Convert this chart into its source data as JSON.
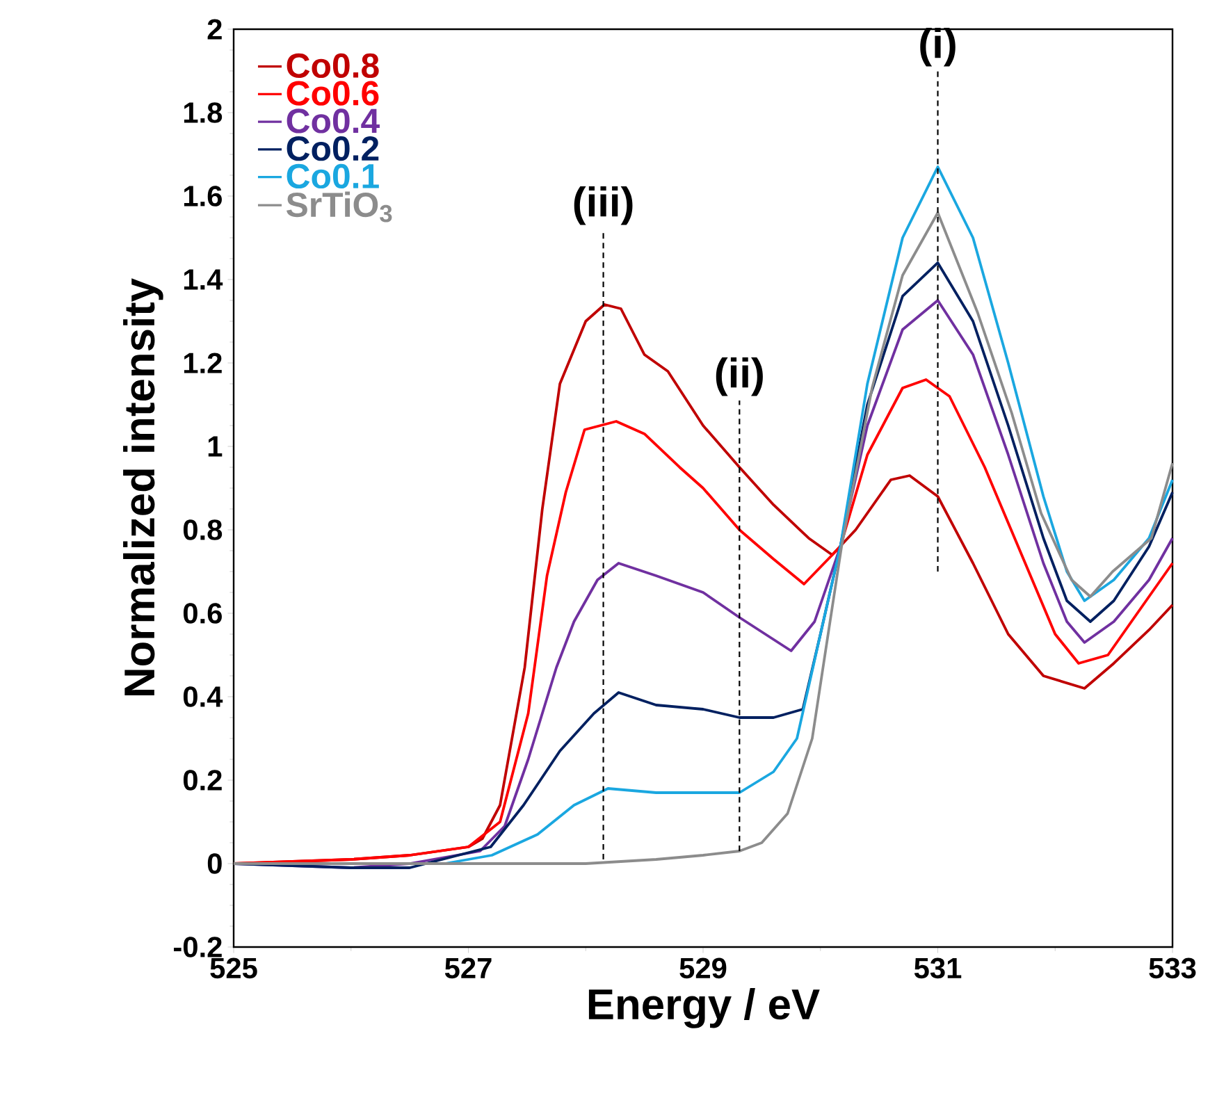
{
  "chart_data": {
    "type": "line",
    "xlabel": "Energy / eV",
    "ylabel": "Normalized intensity",
    "xlim": [
      525,
      533
    ],
    "xticks": [
      525,
      527,
      529,
      531,
      533
    ],
    "ylim": [
      -0.2,
      2
    ],
    "yticks": [
      -0.2,
      0,
      0.2,
      0.4,
      0.6,
      0.8,
      1,
      1.2,
      1.4,
      1.6,
      1.8,
      2
    ],
    "grid": false,
    "legend": "top left",
    "marker": "none",
    "series": [
      {
        "name": "Co0.8",
        "color": "#c00000",
        "x": [
          525,
          526,
          526.5,
          527,
          527.12,
          527.27,
          527.48,
          527.63,
          527.78,
          528.0,
          528.16,
          528.3,
          528.5,
          528.7,
          529.0,
          529.31,
          529.6,
          529.9,
          530.1,
          530.3,
          530.6,
          530.76,
          531.0,
          531.3,
          531.6,
          531.9,
          532.25,
          532.5,
          532.8,
          533
        ],
        "values": [
          0,
          0.01,
          0.02,
          0.04,
          0.06,
          0.14,
          0.47,
          0.85,
          1.15,
          1.3,
          1.34,
          1.33,
          1.22,
          1.18,
          1.05,
          0.95,
          0.86,
          0.78,
          0.74,
          0.8,
          0.92,
          0.93,
          0.88,
          0.72,
          0.55,
          0.45,
          0.42,
          0.48,
          0.56,
          0.62
        ]
      },
      {
        "name": "Co0.6",
        "color": "#ff0000",
        "x": [
          525,
          526,
          526.5,
          527,
          527.27,
          527.51,
          527.67,
          527.83,
          527.99,
          528.26,
          528.5,
          528.8,
          529.0,
          529.31,
          529.6,
          529.86,
          530.17,
          530.4,
          530.7,
          530.9,
          531.1,
          531.4,
          531.7,
          532.0,
          532.2,
          532.45,
          532.7,
          533
        ],
        "values": [
          0,
          0.01,
          0.02,
          0.04,
          0.1,
          0.36,
          0.69,
          0.89,
          1.04,
          1.06,
          1.03,
          0.95,
          0.9,
          0.8,
          0.73,
          0.67,
          0.76,
          0.98,
          1.14,
          1.16,
          1.12,
          0.95,
          0.75,
          0.55,
          0.48,
          0.5,
          0.6,
          0.72
        ]
      },
      {
        "name": "Co0.4",
        "color": "#7030a0",
        "x": [
          525,
          526,
          526.5,
          527.1,
          527.31,
          527.51,
          527.75,
          527.9,
          528.1,
          528.28,
          528.6,
          529.0,
          529.31,
          529.75,
          529.95,
          530.17,
          530.4,
          530.7,
          531.0,
          531.3,
          531.6,
          531.9,
          532.1,
          532.25,
          532.5,
          532.8,
          533
        ],
        "values": [
          0,
          -0.01,
          0,
          0.03,
          0.09,
          0.25,
          0.47,
          0.58,
          0.68,
          0.72,
          0.69,
          0.65,
          0.59,
          0.51,
          0.58,
          0.76,
          1.05,
          1.28,
          1.35,
          1.22,
          0.98,
          0.72,
          0.58,
          0.53,
          0.58,
          0.68,
          0.78
        ]
      },
      {
        "name": "Co0.2",
        "color": "#002060",
        "x": [
          525,
          526,
          526.5,
          527.19,
          527.47,
          527.78,
          528.07,
          528.28,
          528.6,
          529.0,
          529.31,
          529.6,
          529.85,
          530.0,
          530.17,
          530.4,
          530.7,
          531.0,
          531.3,
          531.6,
          531.9,
          532.1,
          532.3,
          532.5,
          532.8,
          533
        ],
        "values": [
          0,
          -0.01,
          -0.01,
          0.04,
          0.14,
          0.27,
          0.36,
          0.41,
          0.38,
          0.37,
          0.35,
          0.35,
          0.37,
          0.55,
          0.76,
          1.1,
          1.36,
          1.44,
          1.3,
          1.05,
          0.78,
          0.63,
          0.58,
          0.63,
          0.76,
          0.89
        ]
      },
      {
        "name": "Co0.1",
        "color": "#1aa7e0",
        "x": [
          525,
          526,
          526.8,
          527.2,
          527.59,
          527.9,
          528.19,
          528.6,
          529.0,
          529.31,
          529.6,
          529.8,
          530.0,
          530.17,
          530.4,
          530.7,
          531.0,
          531.3,
          531.6,
          531.9,
          532.1,
          532.25,
          532.5,
          532.8,
          533
        ],
        "values": [
          0,
          0,
          0,
          0.02,
          0.07,
          0.14,
          0.18,
          0.17,
          0.17,
          0.17,
          0.22,
          0.3,
          0.55,
          0.76,
          1.15,
          1.5,
          1.67,
          1.5,
          1.2,
          0.88,
          0.7,
          0.63,
          0.68,
          0.78,
          0.92
        ]
      },
      {
        "name": "SrTiO$_{3}$",
        "color": "#8c8c8c",
        "x": [
          525,
          526,
          527,
          528,
          528.6,
          529.0,
          529.31,
          529.5,
          529.72,
          529.93,
          530.06,
          530.18,
          530.44,
          530.7,
          531.0,
          531.34,
          531.63,
          531.88,
          532.14,
          532.3,
          532.49,
          532.82,
          533
        ],
        "values": [
          0,
          0,
          0,
          0,
          0.01,
          0.02,
          0.03,
          0.05,
          0.12,
          0.3,
          0.54,
          0.76,
          1.14,
          1.41,
          1.56,
          1.32,
          1.08,
          0.84,
          0.68,
          0.64,
          0.7,
          0.78,
          0.96
        ]
      },
      {
        "type": "line",
        "name": "(iii)",
        "line_style": "dashed",
        "color": "#000000",
        "x": [
          528.15,
          528.15
        ],
        "values": [
          0.01,
          1.52
        ]
      },
      {
        "type": "line",
        "name": "(ii)",
        "line_style": "dashed",
        "color": "#000000",
        "x": [
          529.31,
          529.31
        ],
        "values": [
          0.03,
          1.11
        ]
      },
      {
        "type": "line",
        "name": "(i)",
        "line_style": "dashed",
        "color": "#000000",
        "x": [
          531.0,
          531.0
        ],
        "values": [
          0.7,
          1.9
        ]
      }
    ]
  }
}
